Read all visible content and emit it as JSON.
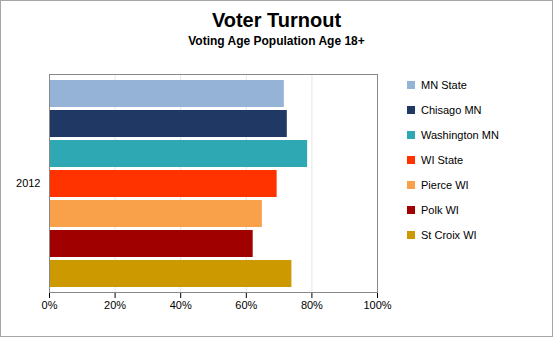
{
  "chart_data": {
    "type": "bar",
    "orientation": "horizontal",
    "title": "Voter Turnout",
    "subtitle": "Voting Age Population Age 18+",
    "categories": [
      "2012"
    ],
    "series": [
      {
        "name": "MN State",
        "color": "#95b3d7",
        "values": [
          71.6
        ]
      },
      {
        "name": "Chisago MN",
        "color": "#1f3864",
        "values": [
          72.5
        ]
      },
      {
        "name": "Washington MN",
        "color": "#2ea8b3",
        "values": [
          78.7
        ]
      },
      {
        "name": "WI State",
        "color": "#ff3300",
        "values": [
          69.4
        ]
      },
      {
        "name": "Pierce WI",
        "color": "#f9a04a",
        "values": [
          64.9
        ]
      },
      {
        "name": "Polk WI",
        "color": "#a00000",
        "values": [
          62.1
        ]
      },
      {
        "name": "St Croix WI",
        "color": "#cc9900",
        "values": [
          73.9
        ]
      }
    ],
    "xlim": [
      0,
      100
    ],
    "xticks": [
      {
        "value": 0,
        "label": "0%"
      },
      {
        "value": 20,
        "label": "20%"
      },
      {
        "value": 40,
        "label": "40%"
      },
      {
        "value": 60,
        "label": "60%"
      },
      {
        "value": 80,
        "label": "80%"
      },
      {
        "value": 100,
        "label": "100%"
      }
    ],
    "grid": true,
    "legend": "right"
  }
}
